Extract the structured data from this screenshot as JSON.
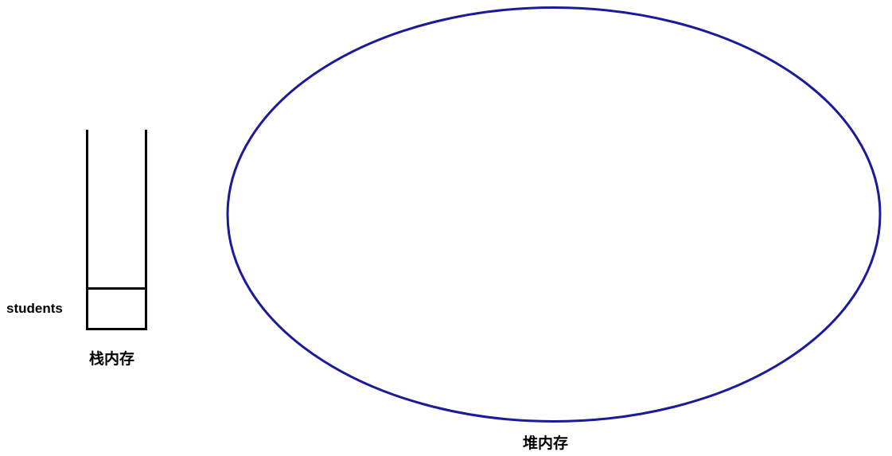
{
  "stack": {
    "caption": "栈内存",
    "variable": "students",
    "stroke_color": "#000000"
  },
  "heap": {
    "caption": "堆内存",
    "stroke_color": "#1a1a9a"
  }
}
